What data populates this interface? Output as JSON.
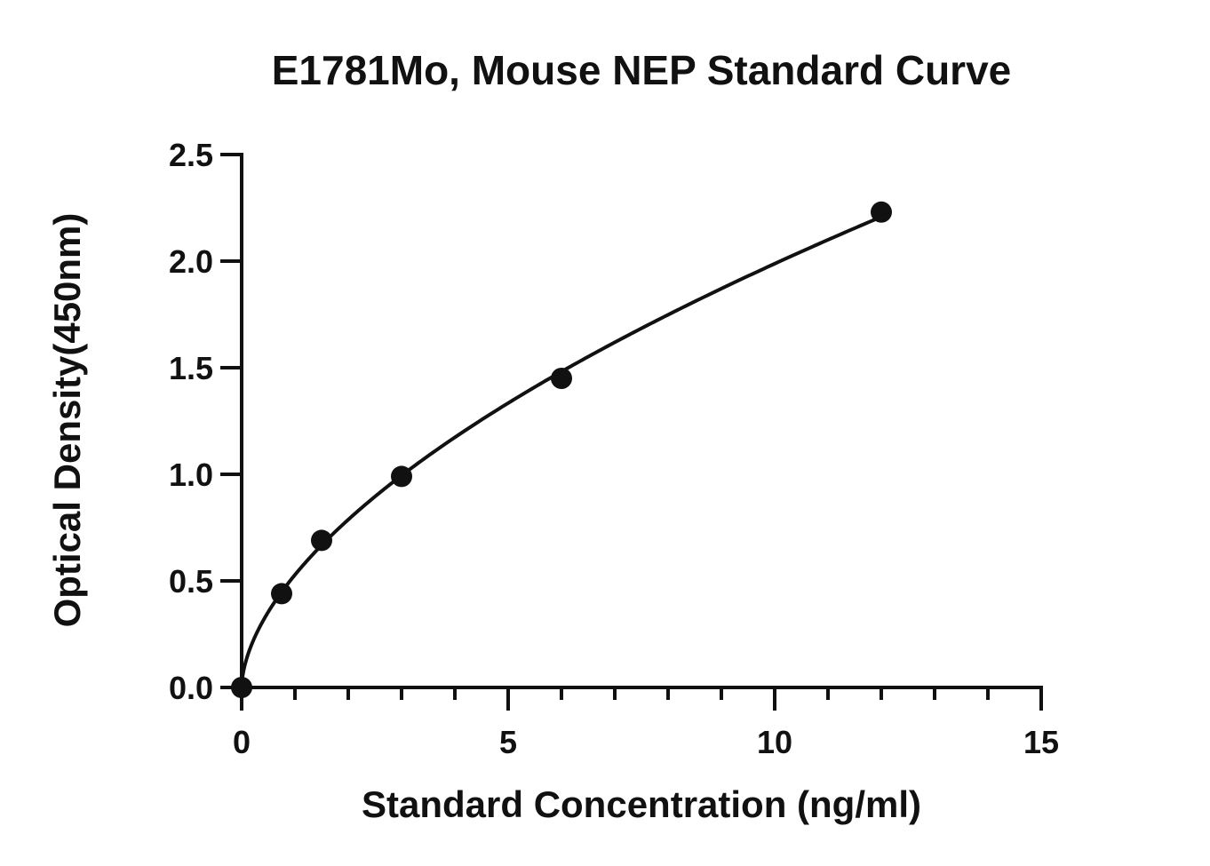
{
  "chart_data": {
    "type": "scatter",
    "title": "E1781Mo, Mouse NEP Standard Curve",
    "xlabel": "Standard Concentration (ng/ml)",
    "ylabel": "Optical Density(450nm)",
    "xlim": [
      0,
      15
    ],
    "ylim": [
      0,
      2.5
    ],
    "x_ticks": [
      "0",
      "5",
      "10",
      "15"
    ],
    "y_ticks": [
      "0.0",
      "0.5",
      "1.0",
      "1.5",
      "2.0",
      "2.5"
    ],
    "x_minor_step": 1,
    "grid": false,
    "legend": "none",
    "series": [
      {
        "x": [
          0,
          0.75,
          1.5,
          3,
          6,
          12
        ],
        "y": [
          0.0,
          0.44,
          0.69,
          0.99,
          1.45,
          2.23
        ],
        "fit_curve": true
      }
    ],
    "colors": {
      "ink": "#111111",
      "background": "#ffffff"
    }
  }
}
